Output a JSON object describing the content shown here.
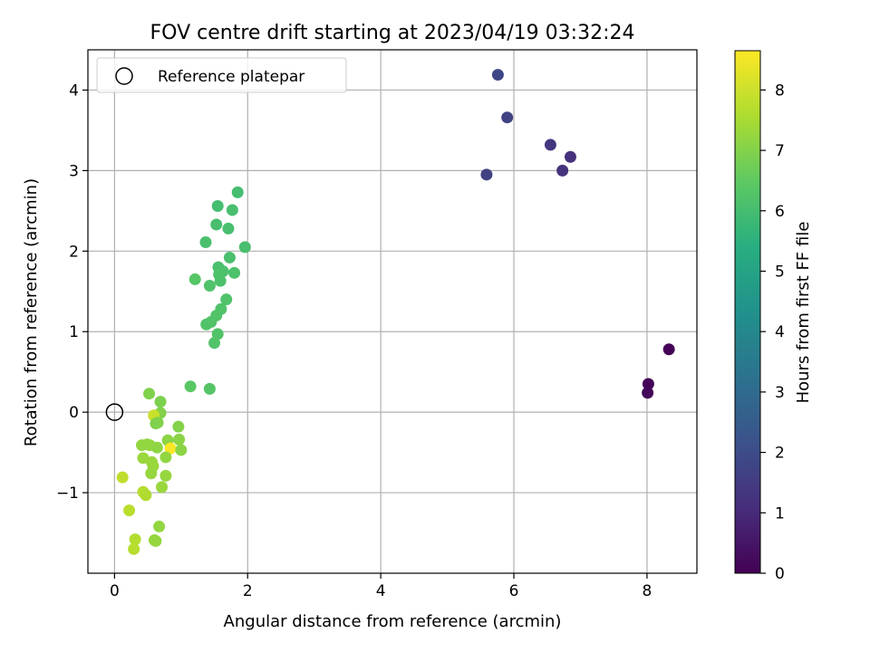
{
  "chart_data": {
    "type": "scatter",
    "title": "FOV centre drift starting at 2023/04/19 03:32:24",
    "xlabel": "Angular distance from reference (arcmin)",
    "ylabel": "Rotation from reference (arcmin)",
    "xlim": [
      -0.4,
      8.75
    ],
    "ylim": [
      -2.0,
      4.5
    ],
    "xticks": [
      0,
      2,
      4,
      6,
      8
    ],
    "yticks": [
      -1,
      0,
      1,
      2,
      3,
      4
    ],
    "grid": true,
    "legend": {
      "position": "top-left",
      "entries": [
        "Reference platepar"
      ]
    },
    "reference_point": {
      "x": 0,
      "y": 0,
      "label": "Reference platepar"
    },
    "colorbar": {
      "label": "Hours from first FF file",
      "colormap": "viridis",
      "range": [
        0,
        8.65
      ],
      "ticks": [
        0,
        1,
        2,
        3,
        4,
        5,
        6,
        7,
        8
      ]
    },
    "series": [
      {
        "points": [
          [
            8.33,
            0.78,
            0.05
          ],
          [
            8.02,
            0.35,
            0.1
          ],
          [
            8.01,
            0.24,
            0.15
          ],
          [
            5.76,
            4.19,
            1.85
          ],
          [
            5.9,
            3.66,
            1.7
          ],
          [
            5.59,
            2.95,
            1.65
          ],
          [
            6.55,
            3.32,
            1.35
          ],
          [
            6.85,
            3.17,
            1.2
          ],
          [
            6.73,
            3.0,
            1.25
          ],
          [
            1.85,
            2.73,
            6.0
          ],
          [
            1.55,
            2.56,
            6.0
          ],
          [
            1.77,
            2.51,
            6.05
          ],
          [
            1.53,
            2.33,
            6.05
          ],
          [
            1.71,
            2.28,
            6.05
          ],
          [
            1.37,
            2.11,
            6.1
          ],
          [
            1.96,
            2.05,
            6.05
          ],
          [
            1.73,
            1.92,
            6.1
          ],
          [
            1.56,
            1.8,
            6.1
          ],
          [
            1.63,
            1.75,
            6.15
          ],
          [
            1.8,
            1.73,
            6.15
          ],
          [
            1.57,
            1.71,
            6.15
          ],
          [
            1.21,
            1.65,
            6.35
          ],
          [
            1.59,
            1.63,
            6.15
          ],
          [
            1.43,
            1.57,
            6.2
          ],
          [
            1.68,
            1.4,
            6.2
          ],
          [
            1.6,
            1.28,
            6.2
          ],
          [
            1.53,
            1.2,
            6.25
          ],
          [
            1.38,
            1.09,
            6.25
          ],
          [
            1.45,
            1.12,
            6.25
          ],
          [
            1.55,
            0.97,
            6.25
          ],
          [
            1.5,
            0.86,
            6.25
          ],
          [
            1.14,
            0.32,
            6.4
          ],
          [
            1.43,
            0.29,
            6.3
          ],
          [
            0.52,
            0.23,
            6.95
          ],
          [
            0.69,
            0.13,
            6.9
          ],
          [
            0.69,
            -0.01,
            7.0
          ],
          [
            0.59,
            -0.04,
            7.95
          ],
          [
            0.65,
            -0.13,
            7.0
          ],
          [
            0.62,
            -0.14,
            6.95
          ],
          [
            0.96,
            -0.18,
            7.0
          ],
          [
            0.8,
            -0.35,
            7.1
          ],
          [
            0.97,
            -0.34,
            7.1
          ],
          [
            0.84,
            -0.45,
            8.6
          ],
          [
            1.0,
            -0.47,
            7.1
          ],
          [
            0.41,
            -0.41,
            7.2
          ],
          [
            0.49,
            -0.4,
            7.2
          ],
          [
            0.53,
            -0.41,
            7.2
          ],
          [
            0.64,
            -0.44,
            7.15
          ],
          [
            0.77,
            -0.56,
            7.2
          ],
          [
            0.43,
            -0.57,
            7.3
          ],
          [
            0.56,
            -0.62,
            7.3
          ],
          [
            0.58,
            -0.67,
            7.3
          ],
          [
            0.55,
            -0.76,
            7.25
          ],
          [
            0.77,
            -0.79,
            7.25
          ],
          [
            0.12,
            -0.81,
            7.8
          ],
          [
            0.71,
            -0.93,
            7.3
          ],
          [
            0.43,
            -0.99,
            7.7
          ],
          [
            0.47,
            -1.03,
            7.6
          ],
          [
            0.22,
            -1.22,
            7.75
          ],
          [
            0.67,
            -1.42,
            7.2
          ],
          [
            0.31,
            -1.58,
            7.65
          ],
          [
            0.6,
            -1.59,
            7.2
          ],
          [
            0.62,
            -1.6,
            7.25
          ],
          [
            0.29,
            -1.7,
            7.7
          ]
        ]
      }
    ]
  }
}
